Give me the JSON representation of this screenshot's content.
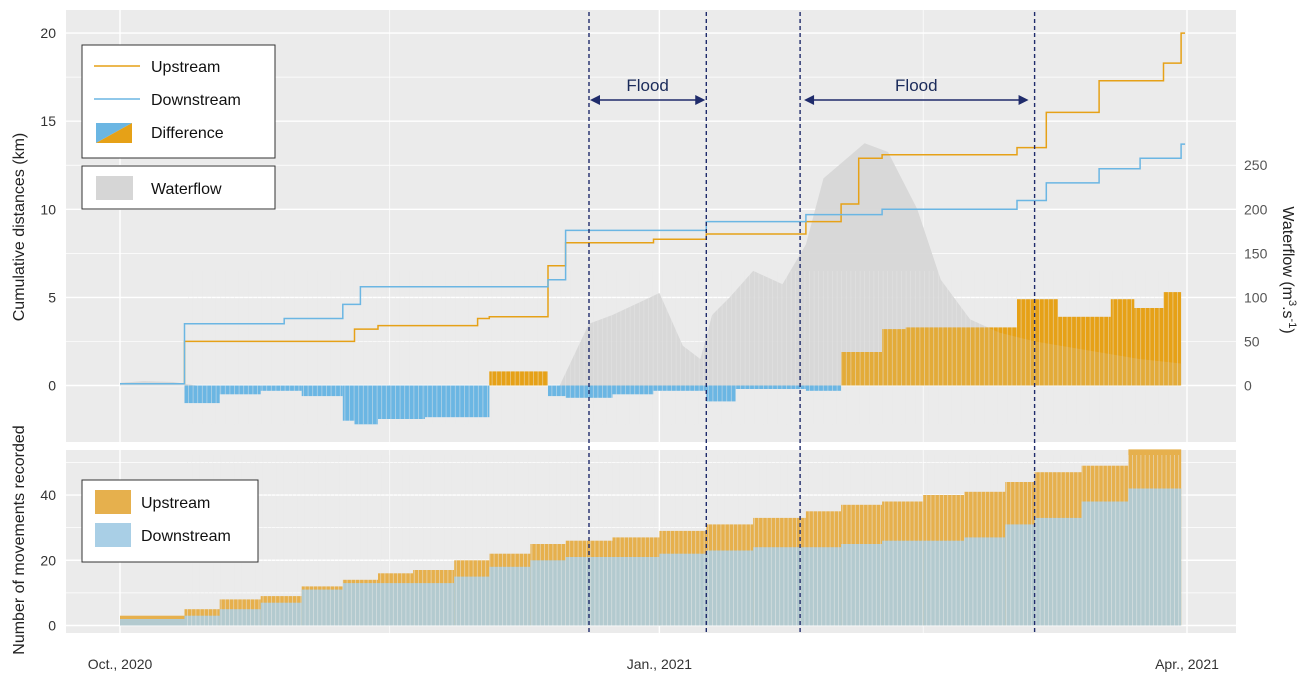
{
  "chart_data": [
    {
      "type": "line",
      "panel": "top",
      "x_axis": {
        "type": "date",
        "range": [
          "2020-10-01",
          "2021-04-01"
        ],
        "ticks": [
          {
            "date": "2020-10-01",
            "label": "Oct., 2020"
          },
          {
            "date": "2021-01-01",
            "label": "Jan., 2021"
          },
          {
            "date": "2021-04-01",
            "label": "Apr., 2021"
          }
        ]
      },
      "ylabel": "Cumulative distances (km)",
      "ylim": [
        -2,
        21
      ],
      "yticks": [
        0,
        5,
        10,
        15,
        20
      ],
      "y2label": "Waterflow (m³.s⁻¹)",
      "y2_label_main": "Waterflow (m",
      "y2_label_sup1": "3",
      "y2_label_mid": ".s",
      "y2_label_sup2": "-1",
      "y2_label_end": ")",
      "y2lim": [
        -18.2,
        290
      ],
      "y2ticks": [
        0,
        50,
        100,
        150,
        200,
        250
      ],
      "grid": true,
      "legend": {
        "upstream": "Upstream",
        "downstream": "Downstream",
        "difference": "Difference",
        "waterflow": "Waterflow",
        "placement": "top-left"
      },
      "series": [
        {
          "name": "Upstream",
          "kind": "step",
          "color": "#E6A117",
          "x": [
            "2020-10-01",
            "2020-10-11",
            "2020-10-12",
            "2020-11-10",
            "2020-11-14",
            "2020-12-01",
            "2020-12-03",
            "2020-12-13",
            "2020-12-16",
            "2020-12-31",
            "2021-01-09",
            "2021-01-26",
            "2021-02-01",
            "2021-02-04",
            "2021-02-08",
            "2021-03-03",
            "2021-03-08",
            "2021-03-17",
            "2021-03-28",
            "2021-03-31"
          ],
          "values": [
            0.1,
            0.1,
            2.5,
            3.2,
            3.4,
            3.8,
            3.9,
            6.8,
            8.1,
            8.3,
            8.6,
            9.3,
            10.3,
            12.9,
            13.1,
            13.5,
            15.5,
            17.3,
            18.3,
            20.0
          ]
        },
        {
          "name": "Downstream",
          "kind": "step",
          "color": "#6BB6E3",
          "x": [
            "2020-10-01",
            "2020-10-11",
            "2020-10-12",
            "2020-10-29",
            "2020-11-08",
            "2020-11-11",
            "2020-12-13",
            "2020-12-16",
            "2021-01-09",
            "2021-01-26",
            "2021-02-08",
            "2021-03-01",
            "2021-03-03",
            "2021-03-08",
            "2021-03-17",
            "2021-03-24",
            "2021-03-31"
          ],
          "values": [
            0.1,
            0.1,
            3.5,
            3.8,
            4.6,
            5.6,
            6.0,
            8.8,
            9.3,
            9.7,
            10.0,
            10.0,
            10.5,
            11.5,
            12.3,
            12.9,
            13.7
          ]
        },
        {
          "name": "Difference",
          "kind": "bars",
          "color_positive": "#E6A117",
          "color_negative": "#6BB6E3",
          "x": [
            "2020-10-01",
            "2020-10-12",
            "2020-10-18",
            "2020-10-25",
            "2020-11-01",
            "2020-11-08",
            "2020-11-10",
            "2020-11-14",
            "2020-11-22",
            "2020-12-03",
            "2020-12-13",
            "2020-12-16",
            "2020-12-24",
            "2020-12-31",
            "2021-01-09",
            "2021-01-14",
            "2021-01-26",
            "2021-02-01",
            "2021-02-08",
            "2021-02-12",
            "2021-03-03",
            "2021-03-10",
            "2021-03-19",
            "2021-03-23",
            "2021-03-28",
            "2021-03-31"
          ],
          "values": [
            0.0,
            -1.0,
            -0.5,
            -0.3,
            -0.6,
            -2.0,
            -2.2,
            -1.9,
            -1.8,
            0.8,
            -0.6,
            -0.7,
            -0.5,
            -0.3,
            -0.9,
            -0.2,
            -0.3,
            1.9,
            3.2,
            3.3,
            4.9,
            3.9,
            4.9,
            4.4,
            5.3,
            6.3
          ]
        },
        {
          "name": "Waterflow",
          "kind": "area",
          "axis": "y2",
          "color": "#D6D6D6",
          "x": [
            "2020-10-01",
            "2020-10-05",
            "2020-10-10",
            "2020-10-14",
            "2020-12-15",
            "2020-12-20",
            "2020-12-24",
            "2021-01-01",
            "2021-01-05",
            "2021-01-08",
            "2021-01-10",
            "2021-01-13",
            "2021-01-17",
            "2021-01-22",
            "2021-01-26",
            "2021-01-29",
            "2021-02-05",
            "2021-02-09",
            "2021-02-14",
            "2021-02-18",
            "2021-02-23",
            "2021-02-28",
            "2021-03-06",
            "2021-03-15",
            "2021-03-24",
            "2021-03-31"
          ],
          "values": [
            3,
            5,
            4,
            0,
            0,
            70,
            80,
            105,
            45,
            30,
            80,
            100,
            130,
            115,
            160,
            235,
            275,
            265,
            200,
            120,
            75,
            60,
            50,
            40,
            30,
            25
          ]
        }
      ],
      "annotations": {
        "flood_label": "Flood",
        "flood_label_2": "Flood",
        "flood_lines": [
          "2020-12-20",
          "2021-01-09",
          "2021-01-25",
          "2021-03-06"
        ],
        "flood_periods": [
          [
            "2020-12-20",
            "2021-01-09"
          ],
          [
            "2021-01-25",
            "2021-03-06"
          ]
        ]
      }
    },
    {
      "type": "bar",
      "panel": "bottom",
      "ylabel": "Number of movements recorded",
      "ylim": [
        -3,
        55
      ],
      "yticks": [
        0,
        20,
        40
      ],
      "grid": true,
      "legend": {
        "upstream": "Upstream",
        "downstream": "Downstream",
        "placement": "top-left"
      },
      "series": [
        {
          "name": "Upstream",
          "color": "#E6B04D",
          "x": [
            "2020-10-01",
            "2020-10-12",
            "2020-10-18",
            "2020-10-25",
            "2020-11-01",
            "2020-11-08",
            "2020-11-14",
            "2020-11-20",
            "2020-11-27",
            "2020-12-03",
            "2020-12-10",
            "2020-12-16",
            "2020-12-24",
            "2021-01-01",
            "2021-01-09",
            "2021-01-17",
            "2021-01-26",
            "2021-02-01",
            "2021-02-08",
            "2021-02-15",
            "2021-02-22",
            "2021-03-01",
            "2021-03-06",
            "2021-03-14",
            "2021-03-22",
            "2021-03-31"
          ],
          "values": [
            0,
            3,
            5,
            8,
            9,
            12,
            14,
            16,
            17,
            20,
            22,
            25,
            26,
            27,
            29,
            31,
            33,
            35,
            37,
            38,
            40,
            41,
            44,
            47,
            49,
            54
          ]
        },
        {
          "name": "Downstream",
          "color": "#A9CFE6",
          "x": [
            "2020-10-01",
            "2020-10-12",
            "2020-10-18",
            "2020-10-25",
            "2020-11-01",
            "2020-11-08",
            "2020-11-14",
            "2020-11-20",
            "2020-11-27",
            "2020-12-03",
            "2020-12-10",
            "2020-12-16",
            "2020-12-24",
            "2021-01-01",
            "2021-01-09",
            "2021-01-17",
            "2021-01-26",
            "2021-02-01",
            "2021-02-08",
            "2021-02-15",
            "2021-02-22",
            "2021-03-01",
            "2021-03-06",
            "2021-03-14",
            "2021-03-22",
            "2021-03-31"
          ],
          "values": [
            0,
            2,
            3,
            5,
            7,
            11,
            13,
            13,
            13,
            15,
            18,
            20,
            21,
            21,
            22,
            23,
            24,
            24,
            25,
            26,
            26,
            27,
            31,
            33,
            38,
            42
          ]
        }
      ]
    }
  ]
}
